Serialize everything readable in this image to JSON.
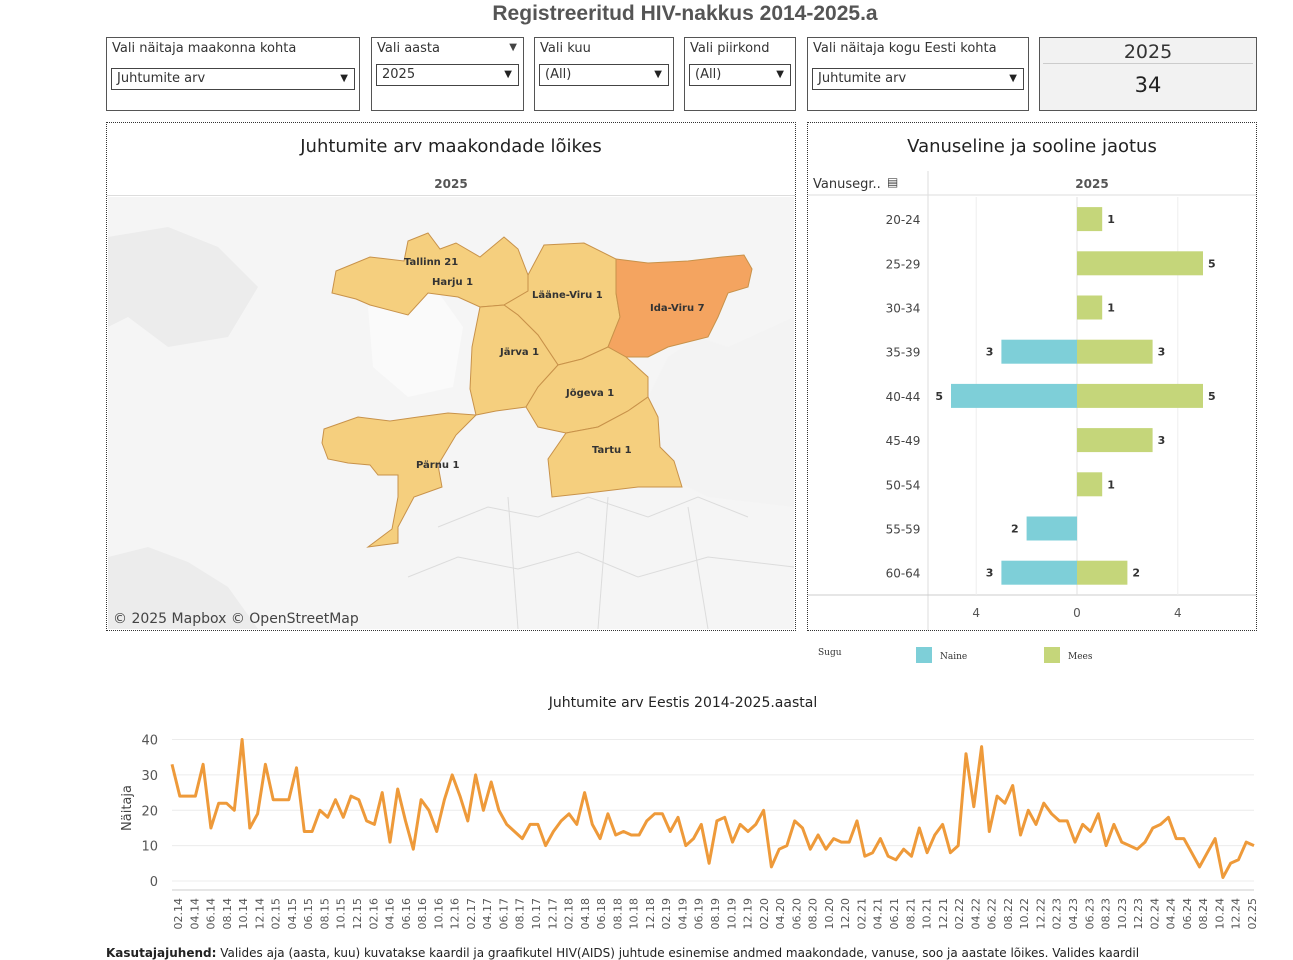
{
  "page_title": "Registreeritud HIV-nakkus 2014-2025.a",
  "filters": [
    {
      "id": "f1",
      "label": "Vali näitaja maakonna kohta",
      "value": "Juhtumite arv"
    },
    {
      "id": "f2",
      "label": "Vali aasta",
      "value": "2025"
    },
    {
      "id": "f3",
      "label": "Vali kuu",
      "value": "(All)"
    },
    {
      "id": "f4",
      "label": "Vali piirkond",
      "value": "(All)"
    },
    {
      "id": "f5",
      "label": "Vali näitaja kogu Eesti kohta",
      "value": "Juhtumite arv"
    }
  ],
  "kpi": {
    "year": "2025",
    "value": "34"
  },
  "map_panel": {
    "title": "Juhtumite arv maakondade lõikes",
    "subtitle": "2025",
    "attribution": "© 2025 Mapbox  © OpenStreetMap",
    "counties": [
      {
        "name": "Tallinn",
        "value": 21,
        "label": "Tallinn 21"
      },
      {
        "name": "Harju",
        "value": 1,
        "label": "Harju 1"
      },
      {
        "name": "Lääne-Viru",
        "value": 1,
        "label": "Lääne-Viru 1"
      },
      {
        "name": "Ida-Viru",
        "value": 7,
        "label": "Ida-Viru 7"
      },
      {
        "name": "Järva",
        "value": 1,
        "label": "Järva 1"
      },
      {
        "name": "Jõgeva",
        "value": 1,
        "label": "Jõgeva 1"
      },
      {
        "name": "Tartu",
        "value": 1,
        "label": "Tartu 1"
      },
      {
        "name": "Pärnu",
        "value": 1,
        "label": "Pärnu 1"
      }
    ],
    "colors": {
      "low": "#f5cf7e",
      "high": "#f4a460",
      "border": "#c8924a",
      "land": "#f1f1f1"
    }
  },
  "age_panel": {
    "title": "Vanuseline ja sooline jaotus",
    "dim_label": "Vanusegr..",
    "year": "2025",
    "legend_title": "Sugu",
    "series_colors": {
      "Naine": "#7ecfd8",
      "Mees": "#c5d67a"
    }
  },
  "line_panel": {
    "title": "Juhtumite arv  Eestis 2014-2025.aastal",
    "color": "#ee9a3a"
  },
  "footnote": "Kasutajajuhend: Valides aja (aasta, kuu) kuvatakse kaardil ja graafikutel HIV(AIDS) juhtude esinemise andmed maakondade, vanuse, soo ja aastate lõikes. Valides kaardil",
  "footnote_bold": "Kasutajajuhend:",
  "chart_data": [
    {
      "type": "bar",
      "title": "Vanuseline ja sooline jaotus",
      "orientation": "horizontal-diverging",
      "categories": [
        "20-24",
        "25-29",
        "30-34",
        "35-39",
        "40-44",
        "45-49",
        "50-54",
        "55-59",
        "60-64"
      ],
      "series": [
        {
          "name": "Naine",
          "values": [
            0,
            0,
            0,
            3,
            5,
            0,
            0,
            2,
            3
          ]
        },
        {
          "name": "Mees",
          "values": [
            1,
            5,
            1,
            3,
            5,
            3,
            1,
            0,
            2
          ]
        }
      ],
      "xticks": [
        "4",
        "0",
        "4"
      ],
      "xlim": [
        -6,
        7
      ],
      "legend": "bottom-left"
    },
    {
      "type": "line",
      "title": "Juhtumite arv  Eestis 2014-2025.aastal",
      "ylabel": "Näitaja",
      "yticks": [
        0,
        10,
        20,
        30,
        40
      ],
      "ylim": [
        0,
        41
      ],
      "xtick_labels": [
        "02.14",
        "04.14",
        "06.14",
        "08.14",
        "10.14",
        "12.14",
        "02.15",
        "04.15",
        "06.15",
        "08.15",
        "10.15",
        "12.15",
        "02.16",
        "04.16",
        "06.16",
        "08.16",
        "10.16",
        "12.16",
        "02.17",
        "04.17",
        "06.17",
        "08.17",
        "10.17",
        "12.17",
        "02.18",
        "04.18",
        "06.18",
        "08.18",
        "10.18",
        "12.18",
        "02.19",
        "04.19",
        "06.19",
        "08.19",
        "10.19",
        "12.19",
        "02.20",
        "04.20",
        "06.20",
        "08.20",
        "10.20",
        "12.20",
        "02.21",
        "04.21",
        "06.21",
        "08.21",
        "10.21",
        "12.21",
        "02.22",
        "04.22",
        "06.22",
        "08.22",
        "10.22",
        "12.22",
        "02.23",
        "04.23",
        "06.23",
        "08.23",
        "10.23",
        "12.23",
        "02.24",
        "04.24",
        "06.24",
        "08.24",
        "10.24",
        "12.24",
        "02.25"
      ],
      "values": [
        33,
        24,
        24,
        24,
        33,
        15,
        22,
        22,
        20,
        40,
        15,
        19,
        33,
        23,
        23,
        23,
        32,
        14,
        14,
        20,
        18,
        23,
        18,
        24,
        23,
        17,
        16,
        25,
        11,
        26,
        17,
        9,
        23,
        20,
        14,
        23,
        30,
        24,
        17,
        30,
        20,
        28,
        20,
        16,
        14,
        12,
        16,
        16,
        10,
        14,
        17,
        19,
        16,
        25,
        16,
        12,
        19,
        13,
        14,
        13,
        13,
        17,
        19,
        19,
        14,
        18,
        10,
        12,
        16,
        5,
        17,
        18,
        11,
        16,
        14,
        16,
        20,
        4,
        9,
        10,
        17,
        15,
        9,
        13,
        9,
        12,
        11,
        11,
        17,
        7,
        8,
        12,
        7,
        6,
        9,
        7,
        15,
        8,
        13,
        16,
        8,
        10,
        36,
        21,
        38,
        14,
        24,
        22,
        27,
        13,
        20,
        16,
        22,
        19,
        17,
        17,
        11,
        16,
        14,
        19,
        10,
        16,
        11,
        10,
        9,
        11,
        15,
        16,
        18,
        12,
        12,
        8,
        4,
        8,
        12,
        1,
        5,
        6,
        11,
        10
      ]
    }
  ]
}
